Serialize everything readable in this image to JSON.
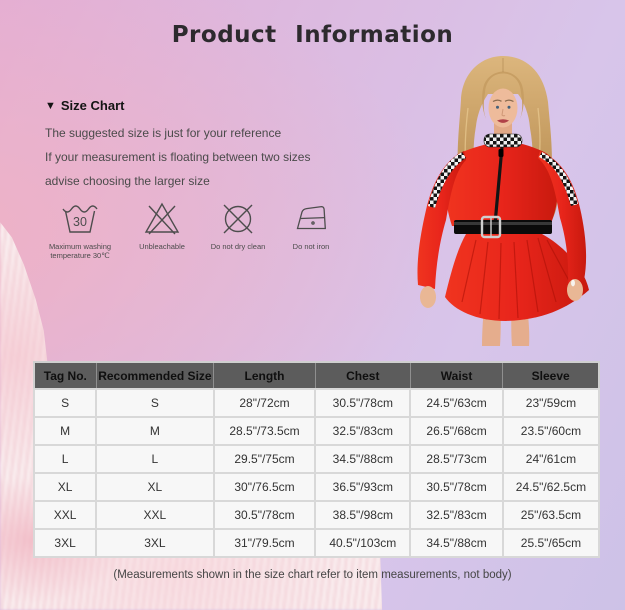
{
  "page": {
    "title": "Product Information",
    "footer_note": "(Measurements shown in the size chart refer to item measurements, not body)"
  },
  "size_chart": {
    "collapse_icon": "▼",
    "heading": "Size Chart",
    "notes": [
      "The suggested size is just for your reference",
      "If your measurement is floating between two sizes",
      "advise choosing the larger size"
    ]
  },
  "care_instructions": [
    {
      "icon": "wash-30-icon",
      "symbol_text": "30",
      "label_lines": [
        "Maximum washing",
        "temperature 30℃"
      ]
    },
    {
      "icon": "do-not-bleach-icon",
      "label_lines": [
        "Unbleachable"
      ]
    },
    {
      "icon": "do-not-dry-clean-icon",
      "label_lines": [
        "Do not dry clean"
      ]
    },
    {
      "icon": "do-not-iron-icon",
      "label_lines": [
        "Do not iron"
      ]
    }
  ],
  "product_photo": {
    "description": "Model wearing a red long-sleeve zip-front dress with black-and-white checkered collar and sleeve stripes, black belt and pleated flared skirt"
  },
  "size_table": {
    "columns": [
      "Tag No.",
      "Recommended Size",
      "Length",
      "Chest",
      "Waist",
      "Sleeve"
    ],
    "rows": [
      [
        "S",
        "S",
        "28\"/72cm",
        "30.5\"/78cm",
        "24.5\"/63cm",
        "23\"/59cm"
      ],
      [
        "M",
        "M",
        "28.5\"/73.5cm",
        "32.5\"/83cm",
        "26.5\"/68cm",
        "23.5\"/60cm"
      ],
      [
        "L",
        "L",
        "29.5\"/75cm",
        "34.5\"/88cm",
        "28.5\"/73cm",
        "24\"/61cm"
      ],
      [
        "XL",
        "XL",
        "30\"/76.5cm",
        "36.5\"/93cm",
        "30.5\"/78cm",
        "24.5\"/62.5cm"
      ],
      [
        "XXL",
        "XXL",
        "30.5\"/78cm",
        "38.5\"/98cm",
        "32.5\"/83cm",
        "25\"/63.5cm"
      ],
      [
        "3XL",
        "3XL",
        "31\"/79.5cm",
        "40.5\"/103cm",
        "34.5\"/88cm",
        "25.5\"/65cm"
      ]
    ]
  },
  "colors": {
    "header_bg": "#5c5c5c",
    "dress_red": "#e8251b",
    "checker_dark": "#141414",
    "fur_pink": "#f7e6e7",
    "bg_pink": "#e3aed5",
    "bg_lavender": "#cdc2e7"
  }
}
